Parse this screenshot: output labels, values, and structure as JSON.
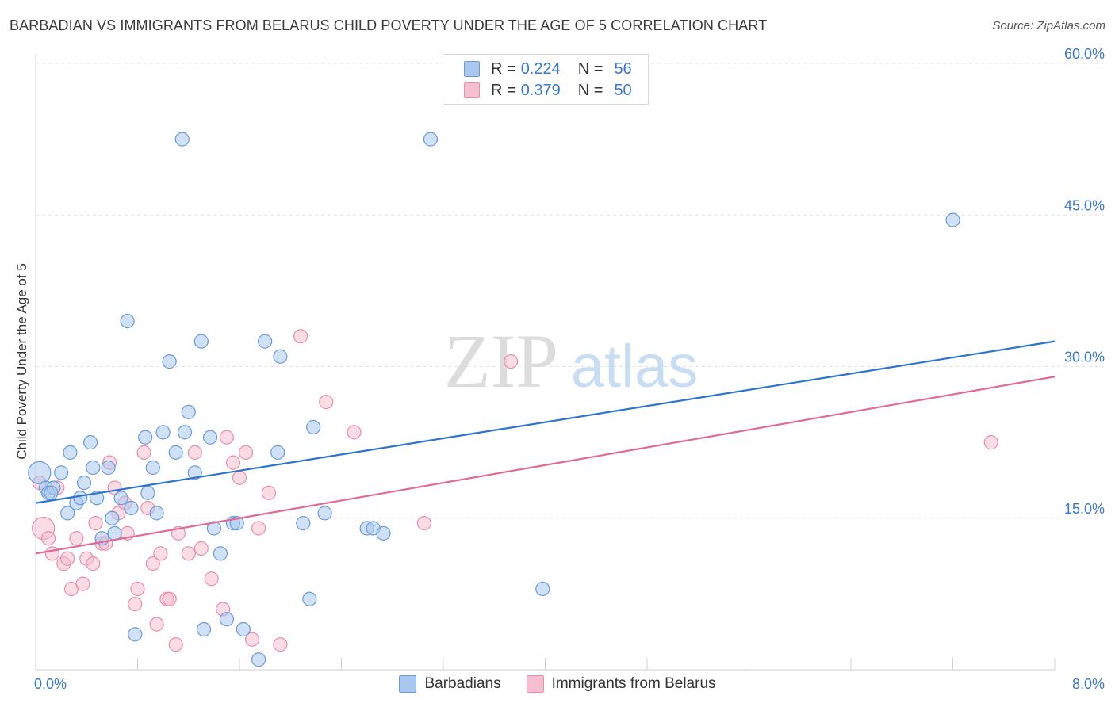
{
  "title": "BARBADIAN VS IMMIGRANTS FROM BELARUS CHILD POVERTY UNDER THE AGE OF 5 CORRELATION CHART",
  "source": "Source: ZipAtlas.com",
  "watermark": {
    "zip": "ZIP",
    "atlas": "atlas"
  },
  "legend": {
    "rows": [
      {
        "r_label": "R =",
        "r_value": "0.224",
        "n_label": "N =",
        "n_value": "56"
      },
      {
        "r_label": "R =",
        "r_value": "0.379",
        "n_label": "N =",
        "n_value": "50"
      }
    ]
  },
  "bottom_legend": [
    "Barbadians",
    "Immigrants from Belarus"
  ],
  "colors": {
    "blue_fill": "#a9c8ef",
    "blue_stroke": "#6a9bd8",
    "blue_line": "#2e74cf",
    "pink_fill": "#f6bfd0",
    "pink_stroke": "#e68fab",
    "pink_line": "#e06b96",
    "tick_text": "#3a78c9"
  },
  "chart_data": {
    "type": "scatter",
    "title": "BARBADIAN VS IMMIGRANTS FROM BELARUS CHILD POVERTY UNDER THE AGE OF 5 CORRELATION CHART",
    "xlabel": "",
    "ylabel": "Child Poverty Under the Age of 5",
    "xlim": [
      0,
      8
    ],
    "ylim": [
      0,
      60
    ],
    "x_tick_labels": [
      {
        "value": 0,
        "label": "0.0%"
      },
      {
        "value": 8,
        "label": "8.0%"
      }
    ],
    "y_tick_labels": [
      {
        "value": 15,
        "label": "15.0%"
      },
      {
        "value": 30,
        "label": "30.0%"
      },
      {
        "value": 45,
        "label": "45.0%"
      },
      {
        "value": 60,
        "label": "60.0%"
      }
    ],
    "series": [
      {
        "name": "Barbadians",
        "r": 0.224,
        "n": 56,
        "trend": {
          "x": [
            0,
            8
          ],
          "y": [
            16.5,
            32.5
          ]
        },
        "points": [
          {
            "x": 0.03,
            "y": 19.5,
            "big": true
          },
          {
            "x": 0.08,
            "y": 18.0
          },
          {
            "x": 0.1,
            "y": 17.5
          },
          {
            "x": 0.14,
            "y": 18.0
          },
          {
            "x": 0.2,
            "y": 19.5
          },
          {
            "x": 0.25,
            "y": 15.5
          },
          {
            "x": 0.27,
            "y": 21.5
          },
          {
            "x": 0.32,
            "y": 16.5
          },
          {
            "x": 0.35,
            "y": 17.0
          },
          {
            "x": 0.38,
            "y": 18.5
          },
          {
            "x": 0.43,
            "y": 22.5
          },
          {
            "x": 0.45,
            "y": 20.0
          },
          {
            "x": 0.48,
            "y": 17.0
          },
          {
            "x": 0.52,
            "y": 13.0
          },
          {
            "x": 0.57,
            "y": 20.0
          },
          {
            "x": 0.6,
            "y": 15.0
          },
          {
            "x": 0.62,
            "y": 13.5
          },
          {
            "x": 0.67,
            "y": 17.0
          },
          {
            "x": 0.72,
            "y": 34.5
          },
          {
            "x": 0.75,
            "y": 16.0
          },
          {
            "x": 0.78,
            "y": 3.5
          },
          {
            "x": 0.86,
            "y": 23.0
          },
          {
            "x": 0.88,
            "y": 17.5
          },
          {
            "x": 0.92,
            "y": 20.0
          },
          {
            "x": 0.95,
            "y": 15.5
          },
          {
            "x": 1.0,
            "y": 23.5
          },
          {
            "x": 1.05,
            "y": 30.5
          },
          {
            "x": 1.1,
            "y": 21.5
          },
          {
            "x": 1.15,
            "y": 52.5
          },
          {
            "x": 1.17,
            "y": 23.5
          },
          {
            "x": 1.2,
            "y": 25.5
          },
          {
            "x": 1.25,
            "y": 19.5
          },
          {
            "x": 1.3,
            "y": 32.5
          },
          {
            "x": 1.32,
            "y": 4.0
          },
          {
            "x": 1.37,
            "y": 23.0
          },
          {
            "x": 1.4,
            "y": 14.0
          },
          {
            "x": 1.45,
            "y": 11.5
          },
          {
            "x": 1.5,
            "y": 5.0
          },
          {
            "x": 1.55,
            "y": 14.5
          },
          {
            "x": 1.58,
            "y": 14.5
          },
          {
            "x": 1.63,
            "y": 4.0
          },
          {
            "x": 1.75,
            "y": 1.0
          },
          {
            "x": 1.8,
            "y": 32.5
          },
          {
            "x": 1.9,
            "y": 21.5
          },
          {
            "x": 1.92,
            "y": 31.0
          },
          {
            "x": 2.1,
            "y": 14.5
          },
          {
            "x": 2.15,
            "y": 7.0
          },
          {
            "x": 2.18,
            "y": 24.0
          },
          {
            "x": 2.27,
            "y": 15.5
          },
          {
            "x": 2.6,
            "y": 14.0
          },
          {
            "x": 2.65,
            "y": 14.0
          },
          {
            "x": 2.73,
            "y": 13.5
          },
          {
            "x": 3.1,
            "y": 52.5
          },
          {
            "x": 3.98,
            "y": 8.0
          },
          {
            "x": 7.2,
            "y": 44.5
          },
          {
            "x": 0.12,
            "y": 17.5
          }
        ]
      },
      {
        "name": "Immigrants from Belarus",
        "r": 0.379,
        "n": 50,
        "trend": {
          "x": [
            0,
            8
          ],
          "y": [
            11.5,
            29.0
          ]
        },
        "points": [
          {
            "x": 0.03,
            "y": 18.5
          },
          {
            "x": 0.06,
            "y": 14.0,
            "big": true
          },
          {
            "x": 0.1,
            "y": 13.0
          },
          {
            "x": 0.13,
            "y": 11.5
          },
          {
            "x": 0.17,
            "y": 18.0
          },
          {
            "x": 0.22,
            "y": 10.5
          },
          {
            "x": 0.25,
            "y": 11.0
          },
          {
            "x": 0.28,
            "y": 8.0
          },
          {
            "x": 0.32,
            "y": 13.0
          },
          {
            "x": 0.37,
            "y": 8.5
          },
          {
            "x": 0.4,
            "y": 11.0
          },
          {
            "x": 0.45,
            "y": 10.5
          },
          {
            "x": 0.47,
            "y": 14.5
          },
          {
            "x": 0.52,
            "y": 12.5
          },
          {
            "x": 0.55,
            "y": 12.5
          },
          {
            "x": 0.58,
            "y": 20.5
          },
          {
            "x": 0.62,
            "y": 18.0
          },
          {
            "x": 0.65,
            "y": 15.5
          },
          {
            "x": 0.7,
            "y": 16.5
          },
          {
            "x": 0.72,
            "y": 13.5
          },
          {
            "x": 0.78,
            "y": 6.5
          },
          {
            "x": 0.8,
            "y": 8.0
          },
          {
            "x": 0.85,
            "y": 21.5
          },
          {
            "x": 0.88,
            "y": 16.0
          },
          {
            "x": 0.92,
            "y": 10.5
          },
          {
            "x": 0.95,
            "y": 4.5
          },
          {
            "x": 0.98,
            "y": 11.5
          },
          {
            "x": 1.03,
            "y": 7.0
          },
          {
            "x": 1.05,
            "y": 7.0
          },
          {
            "x": 1.1,
            "y": 2.5
          },
          {
            "x": 1.12,
            "y": 13.5
          },
          {
            "x": 1.2,
            "y": 11.5
          },
          {
            "x": 1.25,
            "y": 21.5
          },
          {
            "x": 1.3,
            "y": 12.0
          },
          {
            "x": 1.38,
            "y": 9.0
          },
          {
            "x": 1.47,
            "y": 6.0
          },
          {
            "x": 1.5,
            "y": 23.0
          },
          {
            "x": 1.55,
            "y": 20.5
          },
          {
            "x": 1.6,
            "y": 19.0
          },
          {
            "x": 1.65,
            "y": 21.5
          },
          {
            "x": 1.7,
            "y": 3.0
          },
          {
            "x": 1.75,
            "y": 14.0
          },
          {
            "x": 1.83,
            "y": 17.5
          },
          {
            "x": 1.92,
            "y": 2.5
          },
          {
            "x": 2.08,
            "y": 33.0
          },
          {
            "x": 2.28,
            "y": 26.5
          },
          {
            "x": 2.5,
            "y": 23.5
          },
          {
            "x": 3.05,
            "y": 14.5
          },
          {
            "x": 3.73,
            "y": 30.5
          },
          {
            "x": 7.5,
            "y": 22.5
          }
        ]
      }
    ]
  }
}
